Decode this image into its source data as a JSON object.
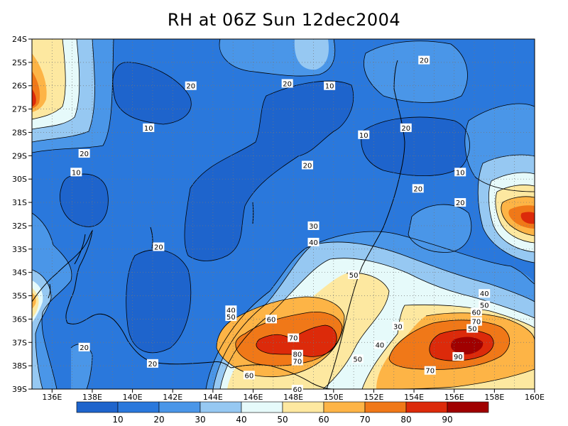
{
  "title": "RH at 06Z Sun 12dec2004",
  "lat_labels": [
    "24S",
    "25S",
    "26S",
    "27S",
    "28S",
    "29S",
    "30S",
    "31S",
    "32S",
    "33S",
    "34S",
    "35S",
    "36S",
    "37S",
    "38S",
    "39S"
  ],
  "lon_labels": [
    "136E",
    "138E",
    "140E",
    "142E",
    "144E",
    "146E",
    "148E",
    "150E",
    "152E",
    "154E",
    "156E",
    "158E",
    "160E"
  ],
  "colorbar": {
    "tick_labels": [
      "10",
      "20",
      "30",
      "40",
      "50",
      "60",
      "70",
      "80",
      "90"
    ],
    "colors": [
      "#1e64cc",
      "#2a78dc",
      "#4a96e8",
      "#96c8f2",
      "#e6fafa",
      "#fde8a0",
      "#fdb446",
      "#f07818",
      "#dc2a0a",
      "#a00000"
    ]
  },
  "contour_labels": [
    {
      "text": "20",
      "lon": 154.5,
      "lat": -24.9
    },
    {
      "text": "20",
      "lon": 142.9,
      "lat": -26.0
    },
    {
      "text": "20",
      "lon": 147.7,
      "lat": -25.9
    },
    {
      "text": "10",
      "lon": 149.8,
      "lat": -26.0
    },
    {
      "text": "10",
      "lon": 140.8,
      "lat": -27.8
    },
    {
      "text": "10",
      "lon": 151.5,
      "lat": -28.1
    },
    {
      "text": "20",
      "lon": 153.6,
      "lat": -27.8
    },
    {
      "text": "20",
      "lon": 137.6,
      "lat": -28.9
    },
    {
      "text": "10",
      "lon": 137.2,
      "lat": -29.7
    },
    {
      "text": "20",
      "lon": 148.7,
      "lat": -29.4
    },
    {
      "text": "10",
      "lon": 156.3,
      "lat": -29.7
    },
    {
      "text": "20",
      "lon": 154.2,
      "lat": -30.4
    },
    {
      "text": "20",
      "lon": 156.3,
      "lat": -31.0
    },
    {
      "text": "30",
      "lon": 149.0,
      "lat": -32.0
    },
    {
      "text": "20",
      "lon": 141.3,
      "lat": -32.9
    },
    {
      "text": "40",
      "lon": 149.0,
      "lat": -32.7
    },
    {
      "text": "50",
      "lon": 151.0,
      "lat": -34.1
    },
    {
      "text": "40",
      "lon": 157.5,
      "lat": -34.9
    },
    {
      "text": "40",
      "lon": 144.9,
      "lat": -35.6
    },
    {
      "text": "50",
      "lon": 157.5,
      "lat": -35.4
    },
    {
      "text": "50",
      "lon": 144.9,
      "lat": -35.9
    },
    {
      "text": "60",
      "lon": 146.9,
      "lat": -36.0
    },
    {
      "text": "60",
      "lon": 157.1,
      "lat": -35.7
    },
    {
      "text": "70",
      "lon": 157.1,
      "lat": -36.1
    },
    {
      "text": "30",
      "lon": 153.2,
      "lat": -36.3
    },
    {
      "text": "50",
      "lon": 156.9,
      "lat": -36.4
    },
    {
      "text": "70",
      "lon": 148.0,
      "lat": -36.8
    },
    {
      "text": "40",
      "lon": 152.3,
      "lat": -37.1
    },
    {
      "text": "20",
      "lon": 137.6,
      "lat": -37.2
    },
    {
      "text": "80",
      "lon": 148.2,
      "lat": -37.5
    },
    {
      "text": "90",
      "lon": 156.2,
      "lat": -37.6
    },
    {
      "text": "70",
      "lon": 148.2,
      "lat": -37.8
    },
    {
      "text": "50",
      "lon": 151.2,
      "lat": -37.7
    },
    {
      "text": "20",
      "lon": 141.0,
      "lat": -37.9
    },
    {
      "text": "70",
      "lon": 154.8,
      "lat": -38.2
    },
    {
      "text": "60",
      "lon": 145.8,
      "lat": -38.4
    },
    {
      "text": "60",
      "lon": 148.2,
      "lat": -39.0
    }
  ]
}
